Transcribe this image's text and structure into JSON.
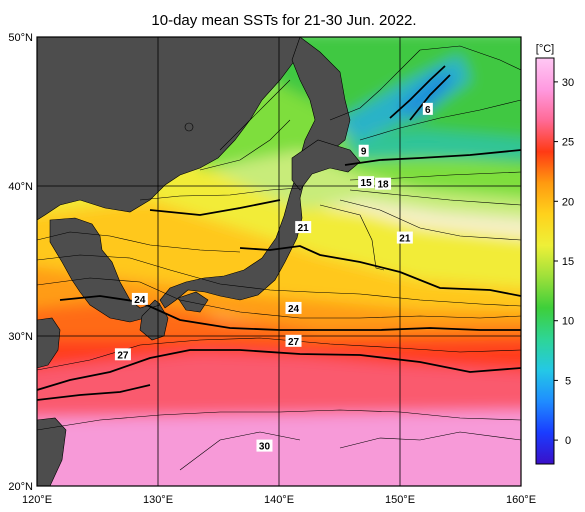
{
  "title": "10-day mean SSTs for 21-30 Jun. 2022.",
  "map": {
    "lon_range": [
      120,
      160
    ],
    "lat_range": [
      20,
      50
    ],
    "lon_ticks": [
      "120°E",
      "130°E",
      "140°E",
      "150°E",
      "160°E"
    ],
    "lat_ticks": [
      "50°N",
      "40°N",
      "30°N",
      "20°N"
    ],
    "grid": true,
    "land_color": "#4d4d4d",
    "contour_labels": [
      {
        "text": "6",
        "lon": 152.3,
        "lat": 45.2
      },
      {
        "text": "9",
        "lon": 147.0,
        "lat": 42.4
      },
      {
        "text": "15",
        "lon": 147.2,
        "lat": 40.3
      },
      {
        "text": "18",
        "lon": 148.6,
        "lat": 40.2
      },
      {
        "text": "21",
        "lon": 142.0,
        "lat": 37.3
      },
      {
        "text": "21",
        "lon": 150.4,
        "lat": 36.6
      },
      {
        "text": "24",
        "lon": 128.5,
        "lat": 32.5
      },
      {
        "text": "24",
        "lon": 141.2,
        "lat": 31.9
      },
      {
        "text": "27",
        "lon": 141.2,
        "lat": 29.7
      },
      {
        "text": "27",
        "lon": 127.1,
        "lat": 28.8
      },
      {
        "text": "30",
        "lon": 138.8,
        "lat": 22.7
      }
    ]
  },
  "colorbar": {
    "unit": "[°C]",
    "ticks": [
      "30",
      "25",
      "20",
      "15",
      "10",
      "5",
      "0"
    ],
    "tick_values": [
      30,
      25,
      20,
      15,
      10,
      5,
      0
    ],
    "range": [
      -2,
      32
    ],
    "colors": [
      "#3a10c8",
      "#1a3cff",
      "#1f8cff",
      "#24c8e6",
      "#2ed596",
      "#3ecf3a",
      "#9ee03a",
      "#eef038",
      "#ffd21c",
      "#ff9a10",
      "#ff3a14",
      "#ff6a96",
      "#ff9ae0",
      "#ffc8f4"
    ]
  }
}
